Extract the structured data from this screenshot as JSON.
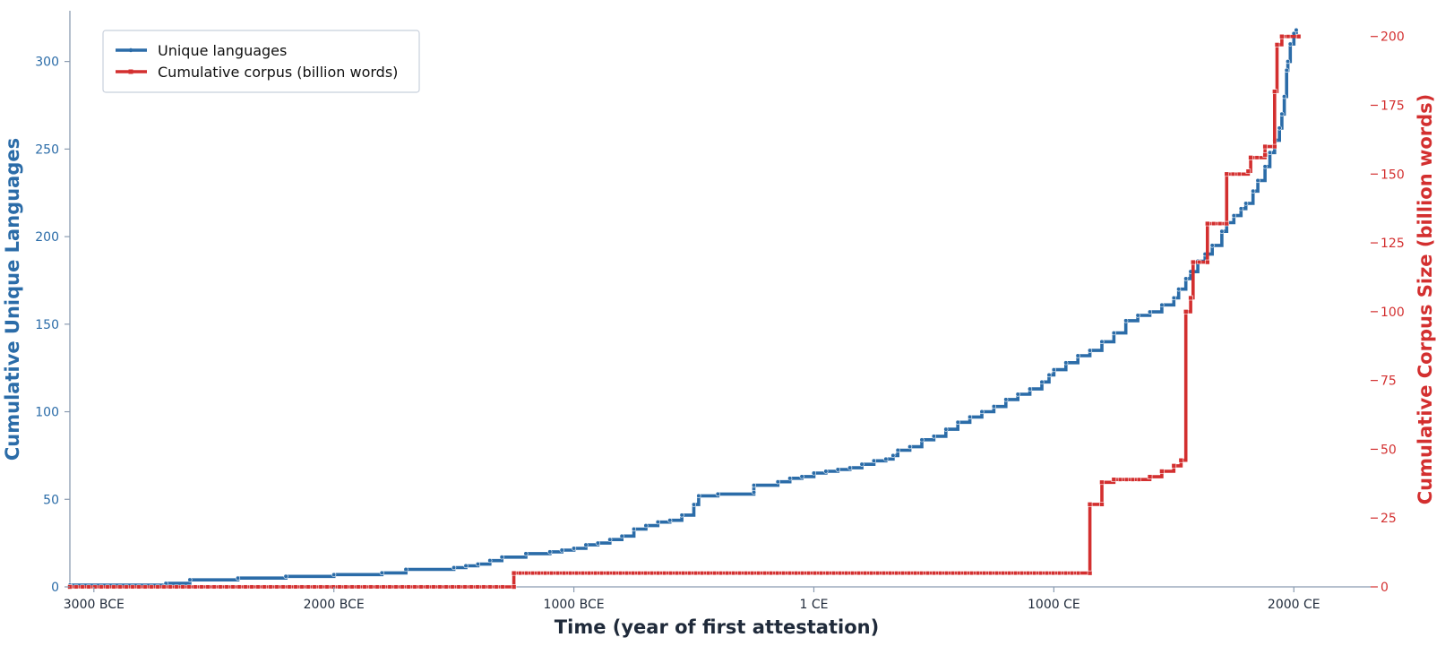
{
  "chart_data": {
    "type": "line",
    "xlabel": "Time  (year of first attestation)",
    "ylabel_left": "Cumulative Unique Languages",
    "ylabel_right": "Cumulative Corpus Size  (billion words)",
    "xlim": [
      -3100,
      2320
    ],
    "ylim_left": [
      0,
      330
    ],
    "ylim_right": [
      0,
      210
    ],
    "x_ticks": [
      {
        "value": -3000,
        "label": "3000 BCE"
      },
      {
        "value": -2000,
        "label": "2000 BCE"
      },
      {
        "value": -1000,
        "label": "1000 BCE"
      },
      {
        "value": 0,
        "label": "1 CE"
      },
      {
        "value": 1000,
        "label": "1000 CE"
      },
      {
        "value": 2000,
        "label": "2000 CE"
      }
    ],
    "y_ticks_left": [
      0,
      50,
      100,
      150,
      200,
      250,
      300
    ],
    "y_ticks_right": [
      0,
      25,
      50,
      75,
      100,
      125,
      150,
      175,
      200
    ],
    "grid": false,
    "legend_position": "top-left",
    "colors": {
      "languages": "#2b6ca8",
      "corpus": "#d32f2f",
      "axis": "#8a9bb0",
      "text_dark": "#1f2a3a"
    },
    "series": [
      {
        "name": "Unique languages",
        "axis": "left",
        "style": "step",
        "points": [
          [
            -3100,
            1
          ],
          [
            -2700,
            2
          ],
          [
            -2600,
            4
          ],
          [
            -2400,
            5
          ],
          [
            -2200,
            6
          ],
          [
            -2000,
            7
          ],
          [
            -1800,
            8
          ],
          [
            -1700,
            10
          ],
          [
            -1500,
            11
          ],
          [
            -1450,
            12
          ],
          [
            -1400,
            13
          ],
          [
            -1350,
            15
          ],
          [
            -1300,
            17
          ],
          [
            -1200,
            19
          ],
          [
            -1100,
            20
          ],
          [
            -1050,
            21
          ],
          [
            -1000,
            22
          ],
          [
            -950,
            24
          ],
          [
            -900,
            25
          ],
          [
            -850,
            27
          ],
          [
            -800,
            29
          ],
          [
            -750,
            33
          ],
          [
            -700,
            35
          ],
          [
            -650,
            37
          ],
          [
            -600,
            38
          ],
          [
            -550,
            41
          ],
          [
            -500,
            47
          ],
          [
            -480,
            52
          ],
          [
            -400,
            53
          ],
          [
            -250,
            54
          ],
          [
            -250,
            58
          ],
          [
            -150,
            60
          ],
          [
            -100,
            62
          ],
          [
            -50,
            63
          ],
          [
            0,
            65
          ],
          [
            50,
            66
          ],
          [
            100,
            67
          ],
          [
            150,
            68
          ],
          [
            200,
            70
          ],
          [
            250,
            72
          ],
          [
            300,
            73
          ],
          [
            330,
            75
          ],
          [
            350,
            78
          ],
          [
            400,
            80
          ],
          [
            450,
            84
          ],
          [
            500,
            86
          ],
          [
            550,
            90
          ],
          [
            600,
            94
          ],
          [
            650,
            97
          ],
          [
            700,
            100
          ],
          [
            750,
            103
          ],
          [
            800,
            107
          ],
          [
            850,
            110
          ],
          [
            900,
            113
          ],
          [
            950,
            117
          ],
          [
            980,
            121
          ],
          [
            1000,
            124
          ],
          [
            1050,
            128
          ],
          [
            1100,
            132
          ],
          [
            1150,
            135
          ],
          [
            1200,
            140
          ],
          [
            1250,
            145
          ],
          [
            1300,
            152
          ],
          [
            1350,
            155
          ],
          [
            1400,
            157
          ],
          [
            1450,
            161
          ],
          [
            1500,
            165
          ],
          [
            1520,
            170
          ],
          [
            1550,
            176
          ],
          [
            1570,
            180
          ],
          [
            1600,
            186
          ],
          [
            1630,
            190
          ],
          [
            1660,
            195
          ],
          [
            1700,
            203
          ],
          [
            1720,
            208
          ],
          [
            1750,
            212
          ],
          [
            1780,
            216
          ],
          [
            1800,
            219
          ],
          [
            1830,
            226
          ],
          [
            1850,
            232
          ],
          [
            1880,
            240
          ],
          [
            1900,
            248
          ],
          [
            1920,
            255
          ],
          [
            1940,
            262
          ],
          [
            1950,
            270
          ],
          [
            1960,
            280
          ],
          [
            1970,
            295
          ],
          [
            1975,
            300
          ],
          [
            1985,
            310
          ],
          [
            2000,
            316
          ],
          [
            2010,
            318
          ]
        ]
      },
      {
        "name": "Cumulative corpus (billion words)",
        "axis": "right",
        "style": "step",
        "points": [
          [
            -3100,
            0
          ],
          [
            -1250,
            0
          ],
          [
            -1250,
            5
          ],
          [
            1150,
            5
          ],
          [
            1150,
            30
          ],
          [
            1200,
            30
          ],
          [
            1200,
            38
          ],
          [
            1250,
            39
          ],
          [
            1400,
            40
          ],
          [
            1450,
            42
          ],
          [
            1500,
            44
          ],
          [
            1530,
            46
          ],
          [
            1550,
            100
          ],
          [
            1570,
            105
          ],
          [
            1580,
            118
          ],
          [
            1640,
            118
          ],
          [
            1640,
            132
          ],
          [
            1720,
            132
          ],
          [
            1720,
            150
          ],
          [
            1810,
            151
          ],
          [
            1820,
            156
          ],
          [
            1880,
            157
          ],
          [
            1880,
            160
          ],
          [
            1920,
            160
          ],
          [
            1920,
            180
          ],
          [
            1930,
            197
          ],
          [
            1950,
            200
          ],
          [
            2020,
            200
          ]
        ]
      }
    ]
  }
}
